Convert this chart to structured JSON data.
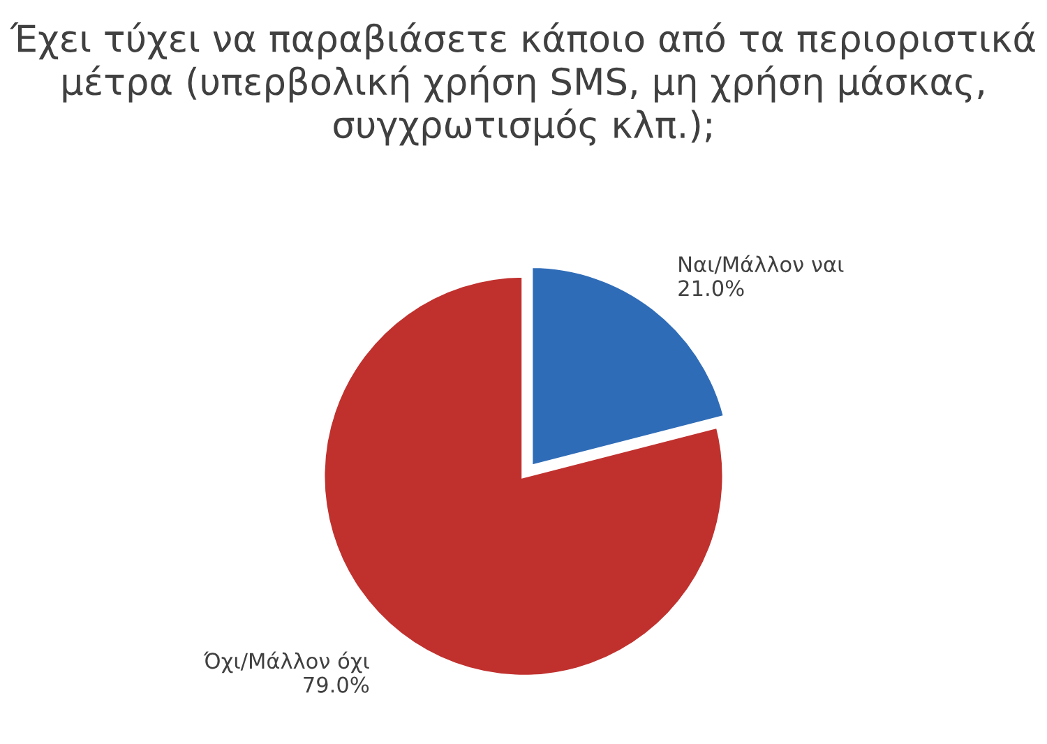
{
  "chart_data": {
    "type": "pie",
    "title": "Έχει τύχει να παραβιάσετε κάποιο από τα περιοριστικά μέτρα (υπερβολική χρήση SMS, μη χρήση μάσκας, συγχρωτισμός κλπ.);",
    "categories": [
      "Ναι/Μάλλον ναι",
      "Όχι/Μάλλον όχι"
    ],
    "values": [
      21.0,
      79.0
    ],
    "value_labels": [
      "21.0%",
      "79.0%"
    ],
    "colors": [
      "#2f6cb8",
      "#c0312e"
    ],
    "legend": false
  }
}
